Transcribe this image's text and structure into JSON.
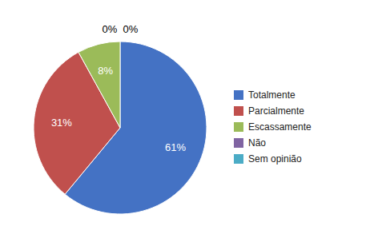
{
  "chart_data": {
    "type": "pie",
    "categories": [
      "Totalmente",
      "Parcialmente",
      "Escassamente",
      "Não",
      "Sem opinião"
    ],
    "values": [
      61,
      31,
      8,
      0,
      0
    ],
    "value_labels": [
      "61%",
      "31%",
      "8%",
      "0%",
      "0%"
    ],
    "colors": [
      "#4472C4",
      "#C0504D",
      "#9BBB59",
      "#8064A2",
      "#4BACC6"
    ],
    "data_labels": true,
    "legend": "right"
  }
}
